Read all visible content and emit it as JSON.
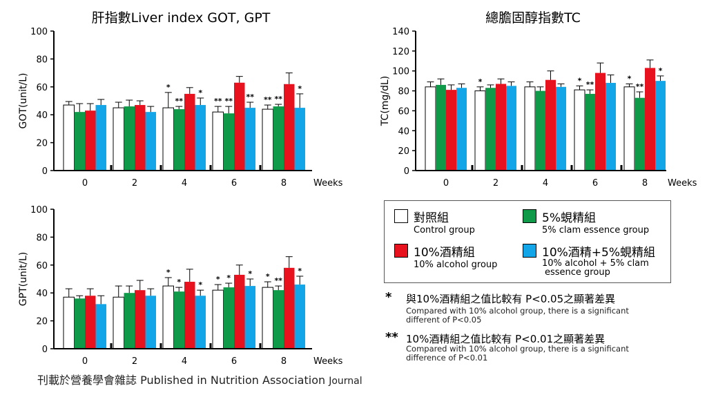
{
  "colors": {
    "control": "#ffffff",
    "clam": "#0f9a4a",
    "alcohol": "#e8121f",
    "combo": "#12a6e8"
  },
  "chart_data": [
    {
      "type": "bar",
      "title": "肝指數Liver index GOT, GPT",
      "ylabel": "GOT(unit/L)",
      "xlabel": "Weeks",
      "categories": [
        "0",
        "2",
        "4",
        "6",
        "8"
      ],
      "ylim": [
        0,
        100
      ],
      "yticks": [
        "0",
        "20",
        "40",
        "60",
        "80",
        "100"
      ],
      "series": [
        {
          "key": "control",
          "values": [
            47,
            45,
            45,
            42,
            44
          ],
          "errors": [
            2.5,
            4,
            11,
            4,
            3
          ],
          "marks": [
            "",
            "",
            "*",
            "**",
            "**"
          ]
        },
        {
          "key": "clam",
          "values": [
            42,
            46,
            44,
            41,
            46
          ],
          "errors": [
            6,
            4.5,
            2,
            5,
            1.5
          ],
          "marks": [
            "",
            "",
            "**",
            "**",
            "**"
          ]
        },
        {
          "key": "alcohol",
          "values": [
            43,
            47,
            55,
            63,
            62
          ],
          "errors": [
            5,
            3,
            4.5,
            4.5,
            8
          ],
          "marks": [
            "",
            "",
            "",
            "",
            ""
          ]
        },
        {
          "key": "combo",
          "values": [
            47,
            42,
            47,
            45,
            45
          ],
          "errors": [
            4,
            4,
            5,
            4,
            10
          ],
          "marks": [
            "",
            "",
            "*",
            "**",
            "*"
          ]
        }
      ]
    },
    {
      "type": "bar",
      "title": "總膽固醇指數TC",
      "ylabel": "TC(mg/dL)",
      "xlabel": "Weeks",
      "categories": [
        "0",
        "2",
        "4",
        "6",
        "8"
      ],
      "ylim": [
        0,
        140
      ],
      "yticks": [
        "0",
        "20",
        "40",
        "60",
        "80",
        "100",
        "120",
        "140"
      ],
      "series": [
        {
          "key": "control",
          "values": [
            84,
            80,
            84,
            81,
            84
          ],
          "errors": [
            5,
            4,
            5,
            4,
            3
          ],
          "marks": [
            "",
            "*",
            "",
            "*",
            "*"
          ]
        },
        {
          "key": "clam",
          "values": [
            86,
            83,
            80,
            77,
            73
          ],
          "errors": [
            6,
            3,
            4,
            4,
            6
          ],
          "marks": [
            "",
            "",
            "",
            "**",
            "**"
          ]
        },
        {
          "key": "alcohol",
          "values": [
            81,
            87,
            91,
            98,
            103
          ],
          "errors": [
            5,
            5,
            9,
            10,
            8
          ],
          "marks": [
            "",
            "",
            "",
            "",
            ""
          ]
        },
        {
          "key": "combo",
          "values": [
            83,
            85,
            84,
            88,
            90
          ],
          "errors": [
            4,
            4,
            3,
            8,
            5
          ],
          "marks": [
            "",
            "",
            "",
            "",
            "*"
          ]
        }
      ]
    },
    {
      "type": "bar",
      "title": "",
      "ylabel": "GPT(unit/L)",
      "xlabel": "Weeks",
      "categories": [
        "0",
        "2",
        "4",
        "6",
        "8"
      ],
      "ylim": [
        0,
        100
      ],
      "yticks": [
        "0",
        "20",
        "40",
        "60",
        "80",
        "100"
      ],
      "series": [
        {
          "key": "control",
          "values": [
            37,
            37,
            45,
            42,
            44
          ],
          "errors": [
            6,
            8,
            6,
            4,
            4
          ],
          "marks": [
            "",
            "",
            "*",
            "*",
            "*"
          ]
        },
        {
          "key": "clam",
          "values": [
            36,
            40,
            41,
            44,
            42
          ],
          "errors": [
            2,
            5,
            3,
            3,
            3
          ],
          "marks": [
            "",
            "",
            "*",
            "*",
            "**"
          ]
        },
        {
          "key": "alcohol",
          "values": [
            38,
            42,
            48,
            53,
            58
          ],
          "errors": [
            5,
            7,
            9,
            7,
            8
          ],
          "marks": [
            "",
            "",
            "",
            "",
            ""
          ]
        },
        {
          "key": "combo",
          "values": [
            32,
            38,
            38,
            45,
            46
          ],
          "errors": [
            6,
            5,
            4,
            5,
            6
          ],
          "marks": [
            "",
            "",
            "*",
            "*",
            "*"
          ]
        }
      ]
    }
  ],
  "legend": [
    {
      "key": "control",
      "zh": "對照組",
      "en": "Control group"
    },
    {
      "key": "clam",
      "zh": "5%蜆精組",
      "en": "5% clam essence group"
    },
    {
      "key": "alcohol",
      "zh": "10%酒精組",
      "en": "10% alcohol group"
    },
    {
      "key": "combo",
      "zh": "10%酒精+5%蜆精組",
      "en": "10% alcohol + 5% clam",
      "en2": "essence group"
    }
  ],
  "notes": [
    {
      "star": "*",
      "zh": "與10%酒精組之值比較有 P<0.05之顯著差異",
      "en1": "Compared with 10% alcohol group, there is a significant",
      "en2": "different of P<0.05"
    },
    {
      "star": "**",
      "zh": "10%酒精組之值比較有 P<0.01之顯著差異",
      "en1": "Compared with 10% alcohol group, there is a significant",
      "en2": "difference of P<0.01"
    }
  ],
  "footer": {
    "main": "刊載於營養學會雜誌 Published in Nutrition Association",
    "journal": "Journal"
  }
}
